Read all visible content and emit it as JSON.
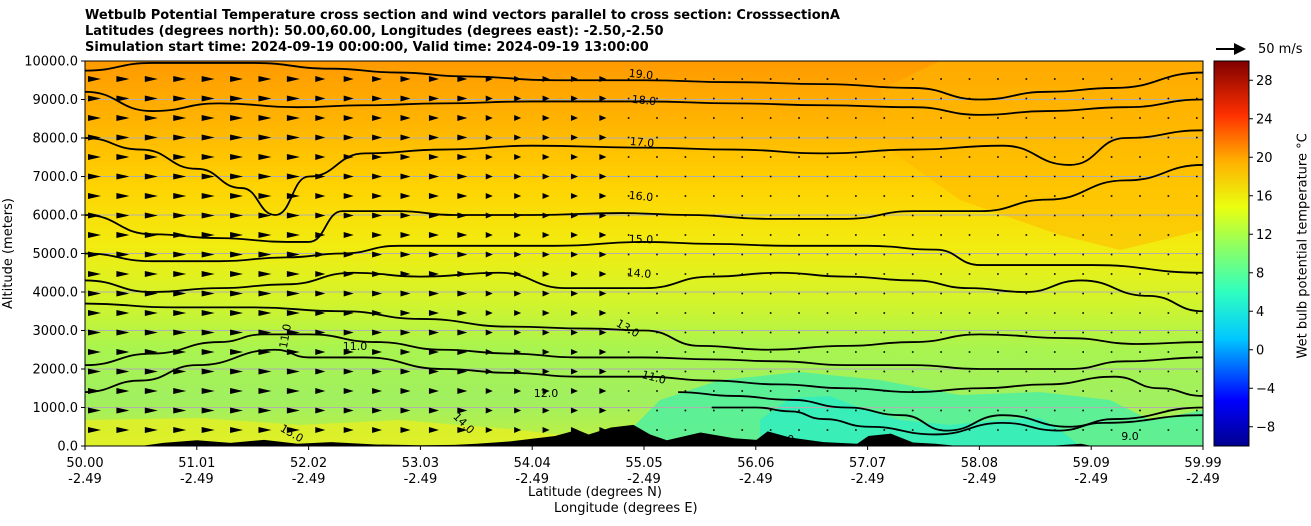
{
  "title": {
    "line1": "Wetbulb Potential Temperature cross section and wind vectors parallel to cross section: CrosssectionA",
    "line2": "Latitudes (degrees north): 50.00,60.00, Longitudes (degrees east): -2.50,-2.50",
    "line3": "Simulation start time: 2024-09-19 00:00:00, Valid time: 2024-09-19 13:00:00"
  },
  "axes": {
    "ylabel": "Altitude (meters)",
    "xlabel_lat": "Latitude (degrees N)",
    "xlabel_lon": "Longitude (degrees E)",
    "colorbar_label": "Wet bulb potential temperature $^\\circ$C"
  },
  "wind_key": {
    "label": "50 m/s"
  },
  "chart_data": {
    "type": "heatmap",
    "title": "Wetbulb Potential Temperature cross section and wind vectors parallel to cross section: CrosssectionA",
    "xlabel": "Latitude (degrees N) / Longitude (degrees E)",
    "ylabel": "Altitude (meters)",
    "ylim": [
      0,
      10000
    ],
    "xlim": [
      50.0,
      59.99
    ],
    "y_ticks": [
      "0.0",
      "1000.0",
      "2000.0",
      "3000.0",
      "4000.0",
      "5000.0",
      "6000.0",
      "7000.0",
      "8000.0",
      "9000.0",
      "10000.0"
    ],
    "x_ticks_lat": [
      "50.00",
      "51.01",
      "52.02",
      "53.03",
      "54.04",
      "55.05",
      "56.06",
      "57.07",
      "58.08",
      "59.09",
      "59.99"
    ],
    "x_ticks_lon": [
      "-2.49",
      "-2.49",
      "-2.49",
      "-2.49",
      "-2.49",
      "-2.49",
      "-2.49",
      "-2.49",
      "-2.49",
      "-2.49",
      "-2.49"
    ],
    "colorbar": {
      "range": [
        -10,
        30
      ],
      "ticks": [
        "28",
        "24",
        "20",
        "16",
        "12",
        "8",
        "4",
        "0",
        "−4",
        "−8"
      ],
      "label": "Wet bulb potential temperature $^\\circ$C"
    },
    "contours": [
      {
        "level": 19.0,
        "label": "19.0",
        "points": [
          [
            50.0,
            9750
          ],
          [
            50.6,
            9950
          ],
          [
            51.5,
            9950
          ],
          [
            52.2,
            9800
          ],
          [
            52.8,
            9700
          ],
          [
            53.4,
            9600
          ],
          [
            54.2,
            9500
          ],
          [
            55.0,
            9500
          ],
          [
            55.8,
            9450
          ],
          [
            56.6,
            9400
          ],
          [
            57.4,
            9300
          ],
          [
            58.0,
            9000
          ],
          [
            58.6,
            9200
          ],
          [
            59.2,
            9300
          ],
          [
            59.99,
            9700
          ]
        ]
      },
      {
        "level": 18.0,
        "label": "18.0",
        "points": [
          [
            50.0,
            9200
          ],
          [
            50.6,
            8700
          ],
          [
            51.2,
            8900
          ],
          [
            51.9,
            8800
          ],
          [
            52.5,
            8850
          ],
          [
            53.2,
            8900
          ],
          [
            54.0,
            8950
          ],
          [
            55.0,
            8950
          ],
          [
            55.8,
            8900
          ],
          [
            56.6,
            8850
          ],
          [
            57.4,
            8800
          ],
          [
            58.0,
            8600
          ],
          [
            58.6,
            8700
          ],
          [
            59.3,
            8800
          ],
          [
            59.99,
            9000
          ]
        ]
      },
      {
        "level": 17.0,
        "label": "17.0",
        "points": [
          [
            50.0,
            8000
          ],
          [
            50.5,
            7700
          ],
          [
            51.0,
            7200
          ],
          [
            51.4,
            6700
          ],
          [
            51.7,
            6000
          ],
          [
            52.0,
            7000
          ],
          [
            52.5,
            7600
          ],
          [
            53.2,
            7700
          ],
          [
            54.0,
            7800
          ],
          [
            55.0,
            7750
          ],
          [
            55.8,
            7700
          ],
          [
            56.6,
            7600
          ],
          [
            57.4,
            7700
          ],
          [
            58.2,
            7800
          ],
          [
            58.8,
            7300
          ],
          [
            59.3,
            8000
          ],
          [
            59.99,
            8200
          ]
        ]
      },
      {
        "level": 16.0,
        "label": "16.0",
        "points": [
          [
            50.0,
            6000
          ],
          [
            50.6,
            5500
          ],
          [
            51.2,
            5400
          ],
          [
            51.8,
            5300
          ],
          [
            52.0,
            5300
          ],
          [
            52.3,
            6100
          ],
          [
            52.8,
            6100
          ],
          [
            53.3,
            6000
          ],
          [
            54.0,
            6000
          ],
          [
            54.8,
            6050
          ],
          [
            55.4,
            6000
          ],
          [
            56.1,
            5900
          ],
          [
            56.8,
            5900
          ],
          [
            57.4,
            6100
          ],
          [
            58.0,
            6100
          ],
          [
            58.6,
            6400
          ],
          [
            59.3,
            6900
          ],
          [
            59.99,
            7300
          ]
        ]
      },
      {
        "level": 15.0,
        "label": "15.0",
        "points": [
          [
            50.0,
            5000
          ],
          [
            50.6,
            4800
          ],
          [
            51.2,
            4800
          ],
          [
            51.8,
            4900
          ],
          [
            52.3,
            5000
          ],
          [
            52.8,
            5200
          ],
          [
            53.4,
            5200
          ],
          [
            54.2,
            5200
          ],
          [
            55.0,
            5300
          ],
          [
            55.6,
            5250
          ],
          [
            56.3,
            5200
          ],
          [
            57.0,
            5200
          ],
          [
            57.6,
            5100
          ],
          [
            58.0,
            4700
          ],
          [
            58.4,
            4700
          ],
          [
            59.0,
            4700
          ],
          [
            59.99,
            4500
          ]
        ]
      },
      {
        "level": 14.0,
        "label": "14.0",
        "points": [
          [
            50.0,
            4300
          ],
          [
            50.6,
            4000
          ],
          [
            51.2,
            4100
          ],
          [
            51.8,
            4200
          ],
          [
            52.4,
            4500
          ],
          [
            53.0,
            4400
          ],
          [
            53.7,
            4500
          ],
          [
            54.3,
            4100
          ],
          [
            55.0,
            4100
          ],
          [
            55.6,
            4400
          ],
          [
            56.2,
            4500
          ],
          [
            56.8,
            4400
          ],
          [
            57.4,
            4300
          ],
          [
            57.9,
            4100
          ],
          [
            58.4,
            4000
          ],
          [
            58.9,
            4300
          ],
          [
            59.5,
            3900
          ],
          [
            59.99,
            3500
          ]
        ]
      },
      {
        "level": 13.0,
        "label": "13.0",
        "points": [
          [
            50.0,
            3700
          ],
          [
            50.8,
            3600
          ],
          [
            51.5,
            3600
          ],
          [
            52.3,
            3500
          ],
          [
            53.0,
            3300
          ],
          [
            53.8,
            3100
          ],
          [
            54.5,
            3050
          ],
          [
            55.0,
            3000
          ],
          [
            55.5,
            2600
          ],
          [
            56.1,
            2500
          ],
          [
            56.8,
            2600
          ],
          [
            57.4,
            2700
          ],
          [
            58.0,
            2900
          ],
          [
            58.8,
            2800
          ],
          [
            59.4,
            2650
          ],
          [
            59.99,
            2700
          ]
        ]
      },
      {
        "level": 12.0,
        "label": "12.0",
        "points": [
          [
            50.0,
            2100
          ],
          [
            50.6,
            2400
          ],
          [
            51.2,
            2700
          ],
          [
            51.6,
            2900
          ],
          [
            52.0,
            2900
          ],
          [
            52.6,
            2700
          ],
          [
            53.2,
            2500
          ],
          [
            53.8,
            2400
          ],
          [
            54.4,
            2300
          ],
          [
            55.0,
            2300
          ],
          [
            55.6,
            2250
          ],
          [
            56.2,
            2200
          ],
          [
            56.8,
            2100
          ],
          [
            57.4,
            2100
          ],
          [
            58.0,
            2000
          ],
          [
            58.8,
            2000
          ],
          [
            59.3,
            2200
          ],
          [
            59.99,
            2300
          ]
        ]
      },
      {
        "level": 11.0,
        "label": "11.0",
        "points": [
          [
            50.0,
            1400
          ],
          [
            50.5,
            1700
          ],
          [
            51.0,
            2100
          ],
          [
            51.7,
            2500
          ],
          [
            52.0,
            2300
          ],
          [
            52.5,
            2300
          ],
          [
            53.2,
            2000
          ],
          [
            53.8,
            1900
          ],
          [
            54.4,
            1800
          ],
          [
            55.0,
            1800
          ],
          [
            55.6,
            1700
          ],
          [
            56.2,
            1600
          ],
          [
            56.8,
            1500
          ],
          [
            57.4,
            1400
          ],
          [
            58.0,
            1500
          ],
          [
            58.6,
            1600
          ],
          [
            59.2,
            1800
          ],
          [
            59.6,
            1500
          ],
          [
            59.99,
            1300
          ]
        ]
      },
      {
        "level": 10.0,
        "label": "10.0",
        "points": [
          [
            55.3,
            1400
          ],
          [
            55.8,
            1300
          ],
          [
            56.3,
            1200
          ],
          [
            56.8,
            1000
          ],
          [
            57.3,
            800
          ],
          [
            57.7,
            400
          ],
          [
            58.2,
            800
          ],
          [
            58.8,
            500
          ],
          [
            59.2,
            700
          ],
          [
            59.99,
            1000
          ]
        ]
      },
      {
        "level": 9.0,
        "label": "9.0",
        "points": [
          [
            55.6,
            1000
          ],
          [
            56.0,
            1000
          ],
          [
            56.3,
            900
          ],
          [
            56.6,
            700
          ],
          [
            57.0,
            500
          ],
          [
            57.6,
            300
          ],
          [
            58.2,
            600
          ],
          [
            58.7,
            400
          ],
          [
            59.1,
            600
          ],
          [
            59.99,
            800
          ]
        ]
      }
    ],
    "contour_labels": [
      "19.0",
      "18.0",
      "17.0",
      "16.0",
      "15.0",
      "14.0",
      "13.0",
      "12.0",
      "11.0",
      "10.0",
      "9.0",
      "15.0",
      "14.0",
      "11.0",
      "11.0"
    ],
    "terrain_peak_m": 550
  },
  "colors": {
    "grid": "#b0b0b0",
    "contour": "#000000",
    "terrain": "#000000",
    "field_top": "#ff9900",
    "field_mid": "#ddf01a",
    "field_low": "#55f080",
    "field_min": "#30f0b0"
  }
}
